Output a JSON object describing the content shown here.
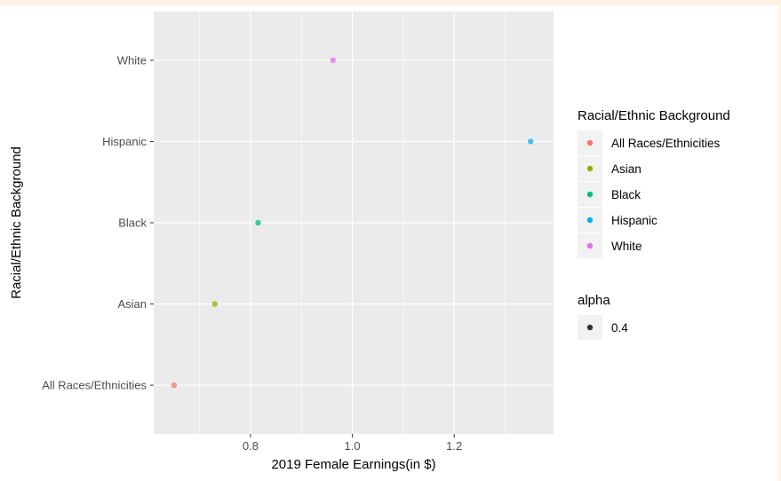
{
  "chart_data": {
    "type": "scatter",
    "title": "",
    "xlabel": "2019 Female Earnings(in $)",
    "ylabel": "Racial/Ethnic Background",
    "categories": [
      "All Races/Ethnicities",
      "Asian",
      "Black",
      "Hispanic",
      "White"
    ],
    "xlim": [
      0.61,
      1.395
    ],
    "x_ticks": [
      0.8,
      1.0,
      1.2
    ],
    "x_tick_labels": [
      "0.8",
      "1.0",
      "1.2"
    ],
    "grid": true,
    "points": [
      {
        "category": "All Races/Ethnicities",
        "x": 0.65,
        "color": "#F8766D"
      },
      {
        "category": "Asian",
        "x": 0.73,
        "color": "#A3A500"
      },
      {
        "category": "Black",
        "x": 0.815,
        "color": "#00BF7D"
      },
      {
        "category": "Hispanic",
        "x": 1.35,
        "color": "#00B0F6"
      },
      {
        "category": "White",
        "x": 0.962,
        "color": "#E76BF3"
      }
    ],
    "legend": {
      "position": "right",
      "title": "Racial/Ethnic Background",
      "entries": [
        {
          "label": "All Races/Ethnicities",
          "color": "#F8766D"
        },
        {
          "label": "Asian",
          "color": "#A3A500"
        },
        {
          "label": "Black",
          "color": "#00BF7D"
        },
        {
          "label": "Hispanic",
          "color": "#00B0F6"
        },
        {
          "label": "White",
          "color": "#E76BF3"
        }
      ]
    },
    "alpha_legend": {
      "title": "alpha",
      "entries": [
        {
          "label": "0.4",
          "color": "#333333"
        }
      ]
    },
    "panel_background": "#EBEBEB",
    "grid_color": "#FFFFFF"
  }
}
